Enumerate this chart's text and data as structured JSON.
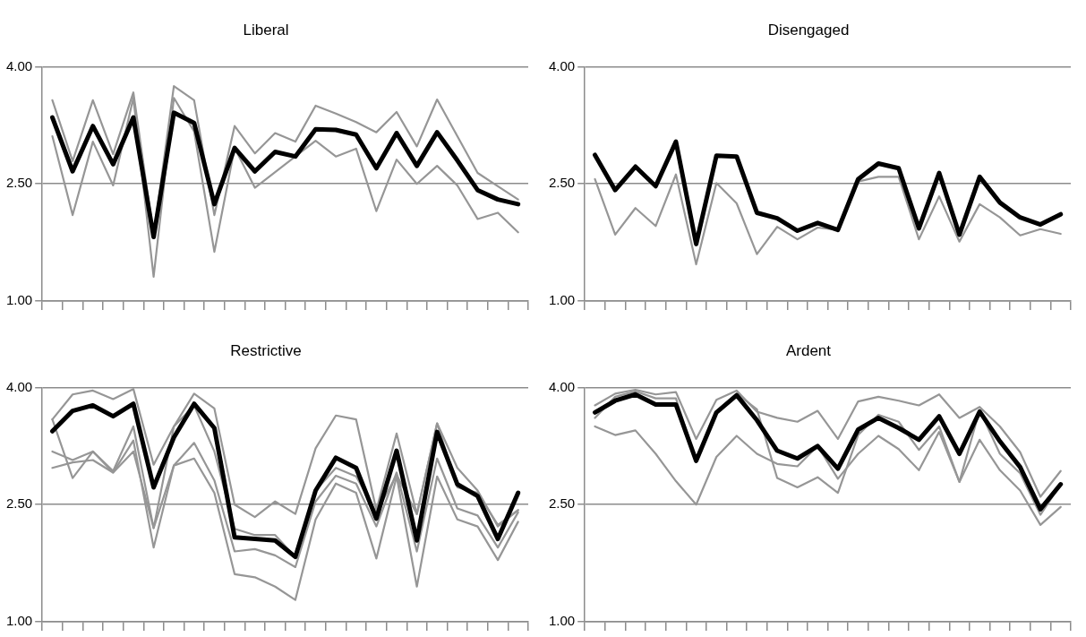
{
  "chart_data": [
    {
      "type": "line",
      "title": "Liberal",
      "categories": [
        null,
        null,
        null,
        null,
        null,
        null,
        null,
        null,
        null,
        null,
        null,
        null,
        null,
        null,
        null,
        null,
        null,
        null,
        null,
        null,
        null,
        null,
        null,
        null
      ],
      "ylim": [
        1,
        4
      ],
      "yticks": [
        {
          "value": 1,
          "label": "1.00"
        },
        {
          "value": 2.5,
          "label": "2.50"
        },
        {
          "value": 4,
          "label": "4.00"
        }
      ],
      "grid": "y",
      "legend": false,
      "marker": "none",
      "line_style": "solid",
      "tick_labels": "y",
      "series": [
        {
          "color": "#969696",
          "values": [
            3.57,
            2.79,
            3.57,
            2.88,
            3.67,
            1.83,
            3.75,
            3.57,
            2.1,
            3.24,
            2.89,
            3.15,
            3.04,
            3.5,
            3.4,
            3.29,
            3.16,
            3.42,
            2.98,
            3.58,
            3.11,
            2.64,
            2.47,
            2.3
          ]
        },
        {
          "color": "#969696",
          "values": [
            3.11,
            2.1,
            3.04,
            2.48,
            3.6,
            1.31,
            3.6,
            3.17,
            1.63,
            2.96,
            2.45,
            2.65,
            2.85,
            3.05,
            2.85,
            2.95,
            2.15,
            2.81,
            2.5,
            2.73,
            2.48,
            2.05,
            2.13,
            1.88
          ]
        },
        {
          "color": "#000000",
          "values": [
            3.35,
            2.66,
            3.24,
            2.75,
            3.35,
            1.82,
            3.41,
            3.28,
            2.24,
            2.96,
            2.66,
            2.91,
            2.85,
            3.2,
            3.19,
            3.13,
            2.7,
            3.15,
            2.73,
            3.16,
            2.8,
            2.42,
            2.3,
            2.24
          ]
        }
      ]
    },
    {
      "type": "line",
      "title": "Disengaged",
      "categories": [
        null,
        null,
        null,
        null,
        null,
        null,
        null,
        null,
        null,
        null,
        null,
        null,
        null,
        null,
        null,
        null,
        null,
        null,
        null,
        null,
        null,
        null,
        null,
        null
      ],
      "ylim": [
        1,
        4
      ],
      "yticks": [
        {
          "value": 1,
          "label": "1.00"
        },
        {
          "value": 2.5,
          "label": "2.50"
        },
        {
          "value": 4,
          "label": "4.00"
        }
      ],
      "grid": "y",
      "legend": false,
      "marker": "none",
      "line_style": "solid",
      "tick_labels": "y",
      "series": [
        {
          "color": "#969696",
          "values": [
            2.56,
            1.85,
            2.19,
            1.96,
            2.62,
            1.47,
            2.51,
            2.25,
            1.6,
            1.95,
            1.79,
            1.94,
            1.91,
            2.53,
            2.59,
            2.59,
            1.79,
            2.34,
            1.76,
            2.24,
            2.07,
            1.84,
            1.92,
            1.86
          ]
        },
        {
          "color": "#000000",
          "values": [
            2.87,
            2.42,
            2.72,
            2.47,
            3.04,
            1.73,
            2.86,
            2.85,
            2.13,
            2.06,
            1.9,
            2.0,
            1.91,
            2.56,
            2.76,
            2.7,
            1.93,
            2.64,
            1.85,
            2.59,
            2.26,
            2.07,
            1.98,
            2.11
          ]
        }
      ]
    },
    {
      "type": "line",
      "title": "Restrictive",
      "categories": [
        null,
        null,
        null,
        null,
        null,
        null,
        null,
        null,
        null,
        null,
        null,
        null,
        null,
        null,
        null,
        null,
        null,
        null,
        null,
        null,
        null,
        null,
        null,
        null
      ],
      "ylim": [
        1,
        4
      ],
      "yticks": [
        {
          "value": 1,
          "label": "1.00"
        },
        {
          "value": 2.5,
          "label": "2.50"
        },
        {
          "value": 4,
          "label": "4.00"
        }
      ],
      "grid": "y",
      "legend": false,
      "marker": "none",
      "line_style": "solid",
      "tick_labels": "y",
      "series": [
        {
          "color": "#969696",
          "values": [
            3.59,
            3.91,
            3.96,
            3.85,
            3.98,
            3.01,
            3.5,
            3.92,
            3.73,
            2.5,
            2.34,
            2.54,
            2.38,
            3.22,
            3.64,
            3.59,
            2.43,
            3.41,
            2.38,
            3.54,
            2.72,
            2.65,
            2.24,
            2.43
          ]
        },
        {
          "color": "#969696",
          "values": [
            3.59,
            2.84,
            3.18,
            2.93,
            3.5,
            2.2,
            3.5,
            3.77,
            3.18,
            2.19,
            2.11,
            2.11,
            1.83,
            2.68,
            2.97,
            2.86,
            2.4,
            2.88,
            2.38,
            3.54,
            2.97,
            2.68,
            2.22,
            2.43
          ]
        },
        {
          "color": "#969696",
          "values": [
            3.18,
            3.07,
            3.18,
            2.91,
            3.32,
            1.95,
            3.0,
            3.29,
            2.81,
            1.9,
            1.93,
            1.85,
            1.7,
            2.54,
            2.87,
            2.77,
            2.22,
            2.91,
            1.9,
            3.09,
            2.45,
            2.36,
            1.95,
            2.4
          ]
        },
        {
          "color": "#969696",
          "values": [
            2.97,
            3.04,
            3.07,
            2.91,
            3.18,
            2.2,
            3.0,
            3.09,
            2.65,
            1.61,
            1.57,
            1.45,
            1.28,
            2.31,
            2.77,
            2.65,
            1.81,
            2.86,
            1.45,
            2.86,
            2.31,
            2.22,
            1.79,
            2.28
          ]
        },
        {
          "color": "#000000",
          "values": [
            3.44,
            3.7,
            3.77,
            3.63,
            3.79,
            2.72,
            3.36,
            3.79,
            3.48,
            2.08,
            2.06,
            2.04,
            1.83,
            2.68,
            3.1,
            2.97,
            2.32,
            3.19,
            2.04,
            3.43,
            2.76,
            2.61,
            2.06,
            2.65
          ]
        }
      ]
    },
    {
      "type": "line",
      "title": "Ardent",
      "categories": [
        null,
        null,
        null,
        null,
        null,
        null,
        null,
        null,
        null,
        null,
        null,
        null,
        null,
        null,
        null,
        null,
        null,
        null,
        null,
        null,
        null,
        null,
        null,
        null
      ],
      "ylim": [
        1,
        4
      ],
      "yticks": [
        {
          "value": 1,
          "label": "1.00"
        },
        {
          "value": 2.5,
          "label": "2.50"
        },
        {
          "value": 4,
          "label": "4.00"
        }
      ],
      "grid": "y",
      "legend": false,
      "marker": "none",
      "line_style": "solid",
      "tick_labels": "y",
      "series": [
        {
          "color": "#969696",
          "values": [
            3.77,
            3.92,
            3.97,
            3.91,
            3.94,
            3.34,
            3.84,
            3.96,
            3.69,
            3.61,
            3.56,
            3.7,
            3.34,
            3.82,
            3.88,
            3.83,
            3.77,
            3.91,
            3.61,
            3.75,
            3.5,
            3.17,
            2.6,
            2.93
          ]
        },
        {
          "color": "#969696",
          "values": [
            3.61,
            3.88,
            3.95,
            3.86,
            3.86,
            3.06,
            3.68,
            3.92,
            3.72,
            2.84,
            2.72,
            2.85,
            2.65,
            3.39,
            3.65,
            3.56,
            3.2,
            3.5,
            2.79,
            3.71,
            3.15,
            2.9,
            2.37,
            2.76
          ]
        },
        {
          "color": "#969696",
          "values": [
            3.5,
            3.39,
            3.45,
            3.15,
            2.8,
            2.5,
            3.11,
            3.38,
            3.15,
            3.02,
            2.99,
            3.25,
            2.83,
            3.15,
            3.38,
            3.21,
            2.94,
            3.43,
            2.79,
            3.33,
            2.94,
            2.68,
            2.24,
            2.47
          ]
        },
        {
          "color": "#000000",
          "values": [
            3.68,
            3.83,
            3.91,
            3.78,
            3.78,
            3.06,
            3.68,
            3.9,
            3.58,
            3.19,
            3.09,
            3.25,
            2.96,
            3.46,
            3.61,
            3.48,
            3.33,
            3.63,
            3.15,
            3.69,
            3.31,
            2.98,
            2.44,
            2.76
          ]
        }
      ]
    }
  ]
}
